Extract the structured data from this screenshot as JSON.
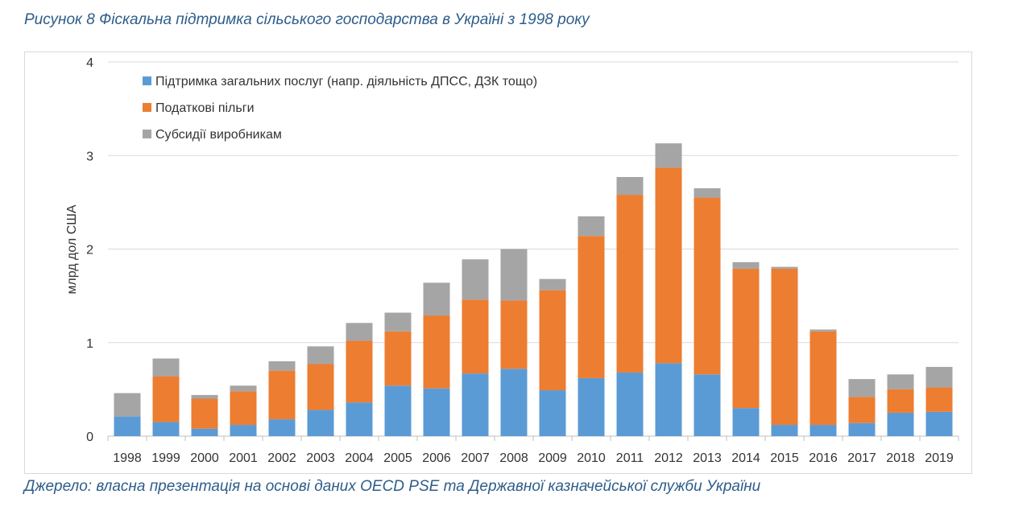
{
  "page": {
    "title": "Рисунок 8 Фіскальна підтримка сільського господарства в Україні з 1998 року",
    "source": "Джерело: власна презентація на основі даних OECD PSE та Державної казначейської служби України"
  },
  "chart_data": {
    "type": "bar",
    "stacked": true,
    "title": "",
    "xlabel": "",
    "ylabel": "млрд дол США",
    "ylim": [
      0,
      4
    ],
    "yticks": [
      0,
      1,
      2,
      3,
      4
    ],
    "grid": true,
    "legend_position": "top-left",
    "categories": [
      "1998",
      "1999",
      "2000",
      "2001",
      "2002",
      "2003",
      "2004",
      "2005",
      "2006",
      "2007",
      "2008",
      "2009",
      "2010",
      "2011",
      "2012",
      "2013",
      "2014",
      "2015",
      "2016",
      "2017",
      "2018",
      "2019"
    ],
    "series": [
      {
        "name": "Підтримка загальних послуг (напр. діяльність ДПСС, ДЗК тощо)",
        "color": "#5b9bd5",
        "values": [
          0.21,
          0.15,
          0.08,
          0.12,
          0.18,
          0.28,
          0.36,
          0.54,
          0.51,
          0.67,
          0.72,
          0.49,
          0.62,
          0.68,
          0.78,
          0.66,
          0.3,
          0.12,
          0.12,
          0.14,
          0.25,
          0.26
        ]
      },
      {
        "name": "Податкові пільги",
        "color": "#ed7d31",
        "values": [
          0.0,
          0.49,
          0.32,
          0.36,
          0.52,
          0.49,
          0.66,
          0.58,
          0.78,
          0.79,
          0.73,
          1.07,
          1.52,
          1.9,
          2.09,
          1.89,
          1.49,
          1.67,
          1.0,
          0.28,
          0.25,
          0.26
        ]
      },
      {
        "name": "Субсидії виробникам",
        "color": "#a5a5a5",
        "values": [
          0.25,
          0.19,
          0.04,
          0.06,
          0.1,
          0.19,
          0.19,
          0.2,
          0.35,
          0.43,
          0.55,
          0.12,
          0.21,
          0.19,
          0.26,
          0.1,
          0.07,
          0.02,
          0.02,
          0.19,
          0.16,
          0.22
        ]
      }
    ]
  }
}
